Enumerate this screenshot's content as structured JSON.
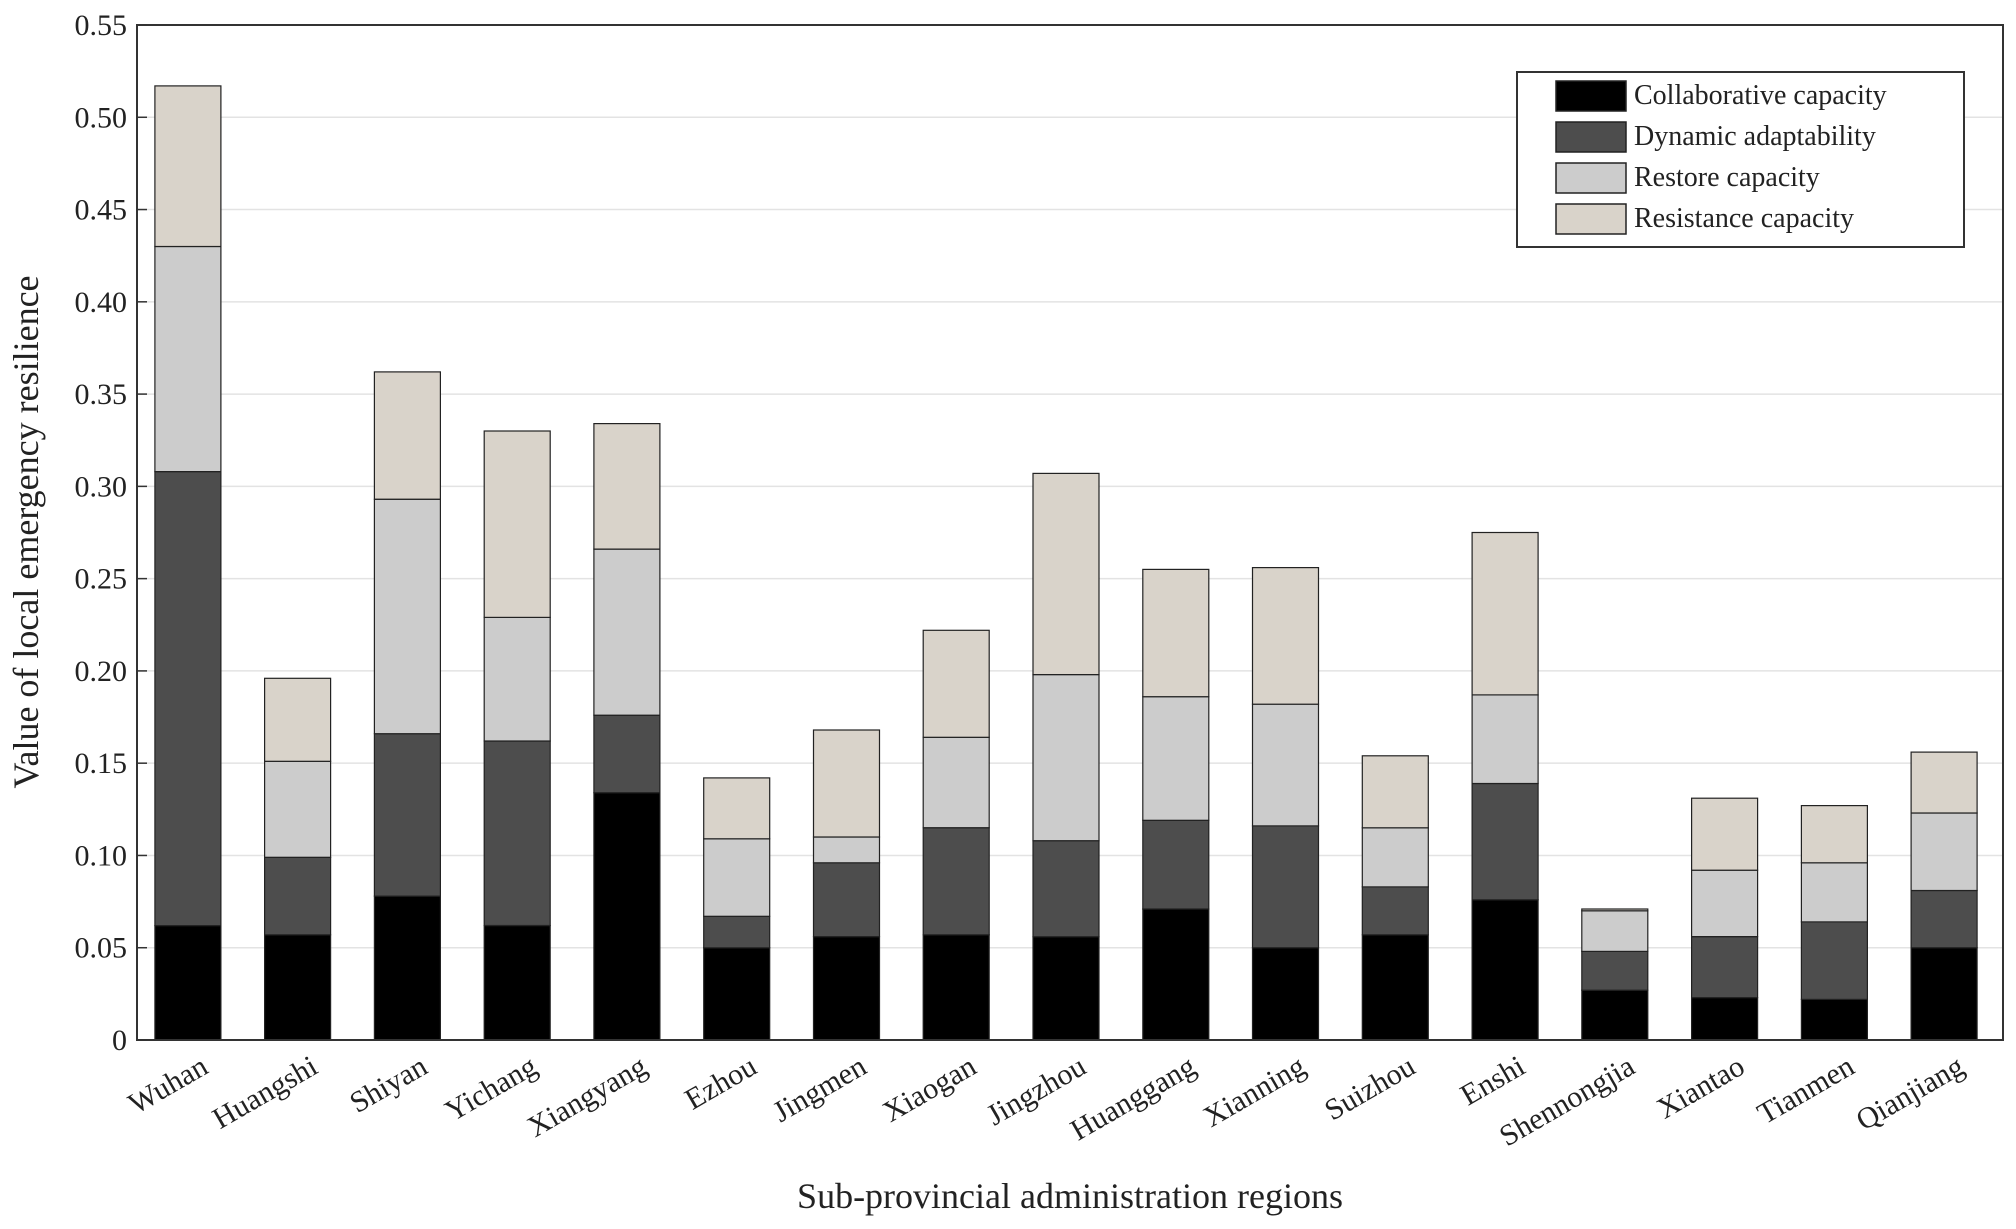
{
  "chart_data": {
    "type": "bar",
    "stacked": true,
    "title": "",
    "xlabel": "Sub-provincial administration regions",
    "ylabel": "Value of local emergency resilience",
    "ylim": [
      0,
      0.55
    ],
    "yticks": [
      "0",
      "0.05",
      "0.10",
      "0.15",
      "0.20",
      "0.25",
      "0.30",
      "0.35",
      "0.40",
      "0.45",
      "0.50",
      "0.55"
    ],
    "grid": true,
    "legend_position": "top-right",
    "categories": [
      "Wuhan",
      "Huangshi",
      "Shiyan",
      "Yichang",
      "Xiangyang",
      "Ezhou",
      "Jingmen",
      "Xiaogan",
      "Jingzhou",
      "Huanggang",
      "Xianning",
      "Suizhou",
      "Enshi",
      "Shennongjia",
      "Xiantao",
      "Tianmen",
      "Qianjiang"
    ],
    "series": [
      {
        "name": "Collaborative capacity",
        "color": "#000000",
        "values": [
          0.062,
          0.057,
          0.078,
          0.062,
          0.134,
          0.05,
          0.056,
          0.057,
          0.056,
          0.071,
          0.05,
          0.057,
          0.076,
          0.027,
          0.023,
          0.022,
          0.05
        ]
      },
      {
        "name": "Dynamic adaptability",
        "color": "#4d4d4d",
        "values": [
          0.246,
          0.042,
          0.088,
          0.1,
          0.042,
          0.017,
          0.04,
          0.058,
          0.052,
          0.048,
          0.066,
          0.026,
          0.063,
          0.021,
          0.033,
          0.042,
          0.031
        ]
      },
      {
        "name": "Restore capacity",
        "color": "#cccccc",
        "values": [
          0.122,
          0.052,
          0.127,
          0.067,
          0.09,
          0.042,
          0.014,
          0.049,
          0.09,
          0.067,
          0.066,
          0.032,
          0.048,
          0.022,
          0.036,
          0.032,
          0.042
        ]
      },
      {
        "name": "Resistance capacity",
        "color": "#d9d3ca",
        "values": [
          0.087,
          0.045,
          0.069,
          0.101,
          0.068,
          0.033,
          0.058,
          0.058,
          0.109,
          0.069,
          0.074,
          0.039,
          0.088,
          0.001,
          0.039,
          0.031,
          0.033
        ]
      }
    ]
  }
}
